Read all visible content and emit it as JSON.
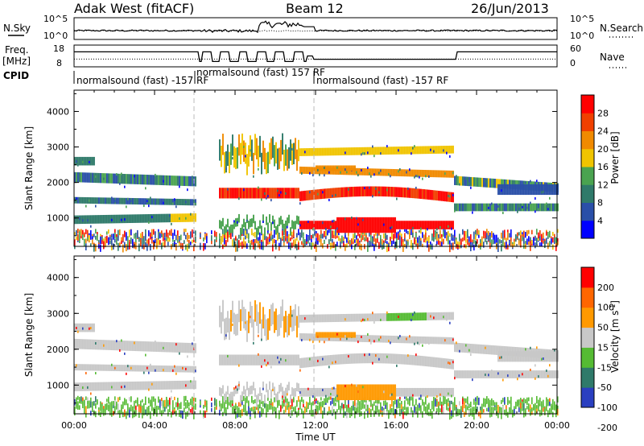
{
  "header": {
    "title": "Adak West (fitACF)",
    "beam": "Beam 12",
    "date": "26/Jun/2013"
  },
  "panels": {
    "nsky": {
      "left_label": "N.Sky",
      "right_label": "N.Search",
      "left_ticks": [
        "10^5",
        "10^0"
      ],
      "right_ticks": [
        "10^5",
        "10^0"
      ]
    },
    "freq": {
      "left_label": "Freq.",
      "left_units": "[MHz]",
      "right_label": "Nave",
      "left_ticks": [
        "18",
        "8"
      ],
      "right_ticks": [
        "60",
        "0"
      ]
    },
    "cpid": {
      "label": "CPID",
      "segments": [
        {
          "text": "normalsound (fast) -157 RF"
        },
        {
          "text": "normalsound (fast) 157 RF"
        },
        {
          "text": "normalsound (fast) -157 RF"
        }
      ]
    }
  },
  "colors": {
    "power_scale": [
      "#0000ff",
      "#2a4fa8",
      "#2f7a6a",
      "#4aa350",
      "#f0c400",
      "#f08a00",
      "#f04000",
      "#ff0000"
    ],
    "velocity_scale": [
      "#2a3fc0",
      "#2f7a6a",
      "#55bb33",
      "#c8c8c8",
      "#ff9900",
      "#ff6600",
      "#ff0000"
    ]
  },
  "chart_data": [
    {
      "type": "heatmap",
      "name": "power",
      "ylabel": "Slant Range [km]",
      "xlabel": "",
      "y_ticks": [
        "1000",
        "2000",
        "3000",
        "4000"
      ],
      "ylim": [
        200,
        4600
      ],
      "colorbar": {
        "label": "Power [dB]",
        "ticks": [
          "4",
          "8",
          "12",
          "16",
          "20",
          "24",
          "28"
        ],
        "range": [
          0,
          30
        ]
      }
    },
    {
      "type": "heatmap",
      "name": "velocity",
      "ylabel": "Slant Range [km]",
      "xlabel": "Time UT",
      "x_ticks": [
        "00:00",
        "04:00",
        "08:00",
        "12:00",
        "16:00",
        "20:00",
        "00:00"
      ],
      "y_ticks": [
        "1000",
        "2000",
        "3000",
        "4000"
      ],
      "ylim": [
        200,
        4600
      ],
      "colorbar": {
        "label": "Velocity [m s",
        "label_sup": "-1",
        "label_end": "]",
        "ticks": [
          "200",
          "100",
          "50",
          "15",
          "-15",
          "-50",
          "-100",
          "-200"
        ]
      }
    }
  ]
}
